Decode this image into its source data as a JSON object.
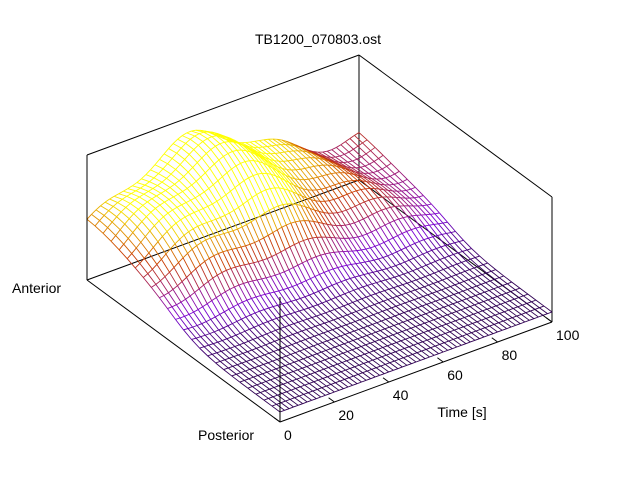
{
  "chart_data": {
    "type": "surface",
    "title": "TB1200_070803.ost",
    "xlabel": "Time [s]",
    "ylabel_start": "Anterior",
    "ylabel_end": "Posterior",
    "x_ticks": [
      "0",
      "20",
      "40",
      "60",
      "80",
      "100"
    ],
    "xlim": [
      0,
      100
    ],
    "colormap": [
      "#000000",
      "#7a00d6",
      "#c83a00",
      "#ffff00"
    ],
    "grid": false,
    "style": "wireframe mesh"
  }
}
